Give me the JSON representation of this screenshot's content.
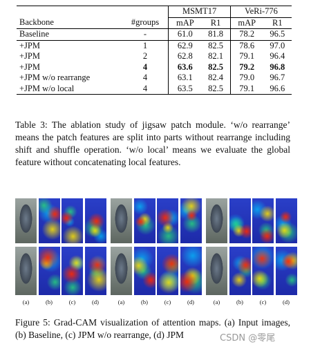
{
  "table": {
    "group_headers": [
      "MSMT17",
      "VeRi-776"
    ],
    "columns": [
      "Backbone",
      "#groups",
      "mAP",
      "R1",
      "mAP",
      "R1"
    ],
    "rows": [
      [
        "Baseline",
        "-",
        "61.0",
        "81.8",
        "78.2",
        "96.5"
      ],
      [
        "+JPM",
        "1",
        "62.9",
        "82.5",
        "78.6",
        "97.0"
      ],
      [
        "+JPM",
        "2",
        "62.8",
        "82.1",
        "79.1",
        "96.4"
      ],
      [
        "+JPM",
        "4",
        "63.6",
        "82.5",
        "79.2",
        "96.8"
      ],
      [
        "+JPM w/o rearrange",
        "4",
        "63.1",
        "82.4",
        "79.0",
        "96.7"
      ],
      [
        "+JPM w/o local",
        "4",
        "63.5",
        "82.5",
        "79.1",
        "96.6"
      ]
    ],
    "caption": "Table 3:  The ablation study of jigsaw patch module.  ‘w/o rearrange’ means the patch features are split into parts without rearrange including shift and shuffle operation.  ‘w/o local’ means we evaluate the global feature without concatenating local features."
  },
  "figure": {
    "labels": [
      "(a)",
      "(b)",
      "(c)",
      "(d)"
    ],
    "caption": "Figure 5: Grad-CAM visualization of attention maps. (a) Input images, (b) Baseline, (c) JPM w/o rearrange, (d) JPM"
  },
  "watermark": "CSDN @零尾"
}
